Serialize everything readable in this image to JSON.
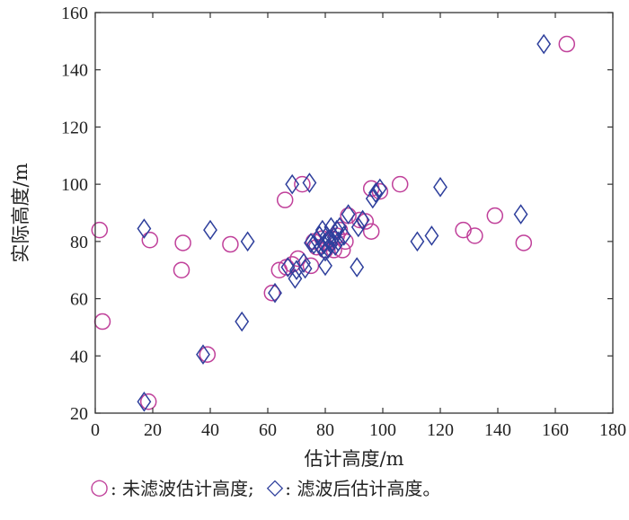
{
  "chart_data": {
    "type": "scatter",
    "xlabel": "估计高度/m",
    "ylabel": "实际高度/m",
    "xlim": [
      0,
      180
    ],
    "ylim": [
      20,
      160
    ],
    "xticks": [
      0,
      20,
      40,
      60,
      80,
      100,
      120,
      140,
      160,
      180
    ],
    "yticks": [
      20,
      40,
      60,
      80,
      100,
      120,
      140,
      160
    ],
    "grid": false,
    "legend_position": "bottom",
    "series": [
      {
        "name": "未滤波估计高度",
        "marker": "circle",
        "color": "#c0409a",
        "points": [
          [
            1.5,
            84
          ],
          [
            2.5,
            52
          ],
          [
            18.5,
            24
          ],
          [
            19,
            80.5
          ],
          [
            30.5,
            79.5
          ],
          [
            30,
            70
          ],
          [
            39,
            40.5
          ],
          [
            47,
            79
          ],
          [
            61.5,
            62
          ],
          [
            64,
            70
          ],
          [
            66,
            94.5
          ],
          [
            66.5,
            71
          ],
          [
            68.5,
            72
          ],
          [
            70.5,
            74
          ],
          [
            72,
            100
          ],
          [
            75,
            71.5
          ],
          [
            76,
            80
          ],
          [
            77,
            78
          ],
          [
            79,
            81
          ],
          [
            80,
            77
          ],
          [
            81,
            79.5
          ],
          [
            82,
            81
          ],
          [
            83,
            77
          ],
          [
            84,
            82
          ],
          [
            85,
            84
          ],
          [
            86,
            77
          ],
          [
            87,
            80
          ],
          [
            88,
            89
          ],
          [
            92,
            87.5
          ],
          [
            94,
            87
          ],
          [
            96,
            98.5
          ],
          [
            96,
            83.5
          ],
          [
            99,
            97.5
          ],
          [
            106,
            100
          ],
          [
            128,
            84
          ],
          [
            132,
            82
          ],
          [
            139,
            89
          ],
          [
            149,
            79.5
          ],
          [
            164,
            149
          ]
        ]
      },
      {
        "name": "滤波后估计高度",
        "marker": "diamond",
        "color": "#2e3f9c",
        "points": [
          [
            17,
            84.5
          ],
          [
            17,
            24
          ],
          [
            37.5,
            40.5
          ],
          [
            40,
            84
          ],
          [
            51,
            52
          ],
          [
            53,
            80
          ],
          [
            62.5,
            62
          ],
          [
            67,
            71
          ],
          [
            68.5,
            100
          ],
          [
            69.5,
            67
          ],
          [
            70,
            70
          ],
          [
            72.5,
            72.5
          ],
          [
            73,
            70.5
          ],
          [
            74.5,
            100.5
          ],
          [
            75,
            79.5
          ],
          [
            76,
            79
          ],
          [
            77,
            80.5
          ],
          [
            78,
            82
          ],
          [
            78.5,
            78
          ],
          [
            79,
            84
          ],
          [
            79.5,
            79
          ],
          [
            80,
            76.5
          ],
          [
            80,
            71.5
          ],
          [
            80.5,
            82
          ],
          [
            81,
            77.5
          ],
          [
            81.5,
            80.5
          ],
          [
            82,
            79
          ],
          [
            82,
            85
          ],
          [
            83,
            81.5
          ],
          [
            83.5,
            78.5
          ],
          [
            84,
            84
          ],
          [
            84.5,
            80
          ],
          [
            85,
            85
          ],
          [
            86.5,
            82
          ],
          [
            88,
            89.5
          ],
          [
            91,
            71
          ],
          [
            91.5,
            85
          ],
          [
            93,
            87.5
          ],
          [
            96.5,
            95
          ],
          [
            97.5,
            97
          ],
          [
            99,
            98.5
          ],
          [
            112,
            80
          ],
          [
            117,
            82
          ],
          [
            120,
            99
          ],
          [
            148,
            89.5
          ],
          [
            156,
            149
          ]
        ]
      }
    ]
  },
  "legend": {
    "items": [
      {
        "symbol": "○",
        "label": ": 未滤波估计高度;"
      },
      {
        "symbol": "◇",
        "label": ": 滤波后估计高度。"
      }
    ]
  }
}
